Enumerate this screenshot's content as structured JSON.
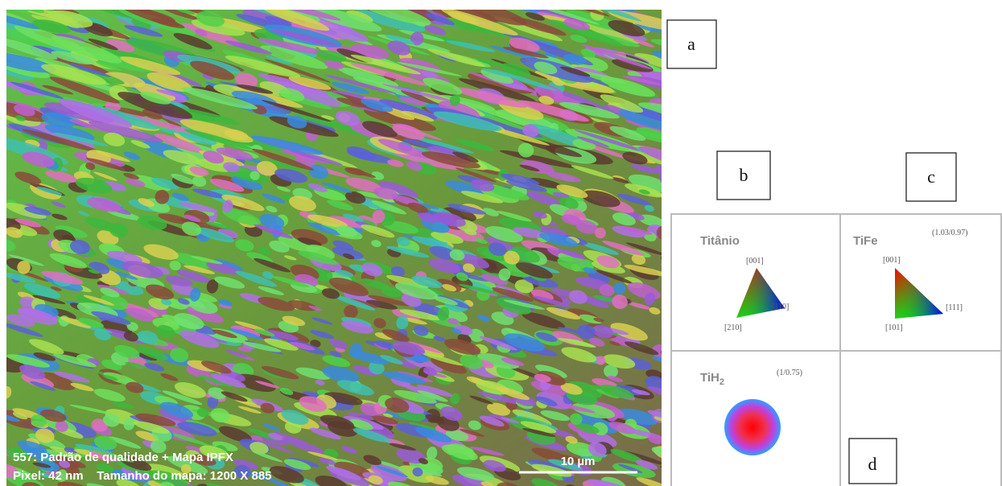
{
  "figure": {
    "map": {
      "caption_line1": "557: Padrão de qualidade + Mapa IPFX",
      "caption_line2": "Pixel: 42 nm    Tamanho do mapa: 1200 X 885",
      "scale_bar": "10 µm"
    },
    "labels": {
      "a": "a",
      "b": "b",
      "c": "c",
      "d": "d"
    },
    "legends": [
      {
        "phase": "Titânio",
        "top": "[001]",
        "right": "[110]",
        "bottom": "[210]"
      },
      {
        "phase": "TiFe",
        "ratio": "(1.03/0.97)",
        "top": "[001]",
        "right": "[111]",
        "bottom": "[101]"
      },
      {
        "phase": "TiH",
        "subscript": "2",
        "ratio": "(1/0.75)"
      }
    ]
  }
}
